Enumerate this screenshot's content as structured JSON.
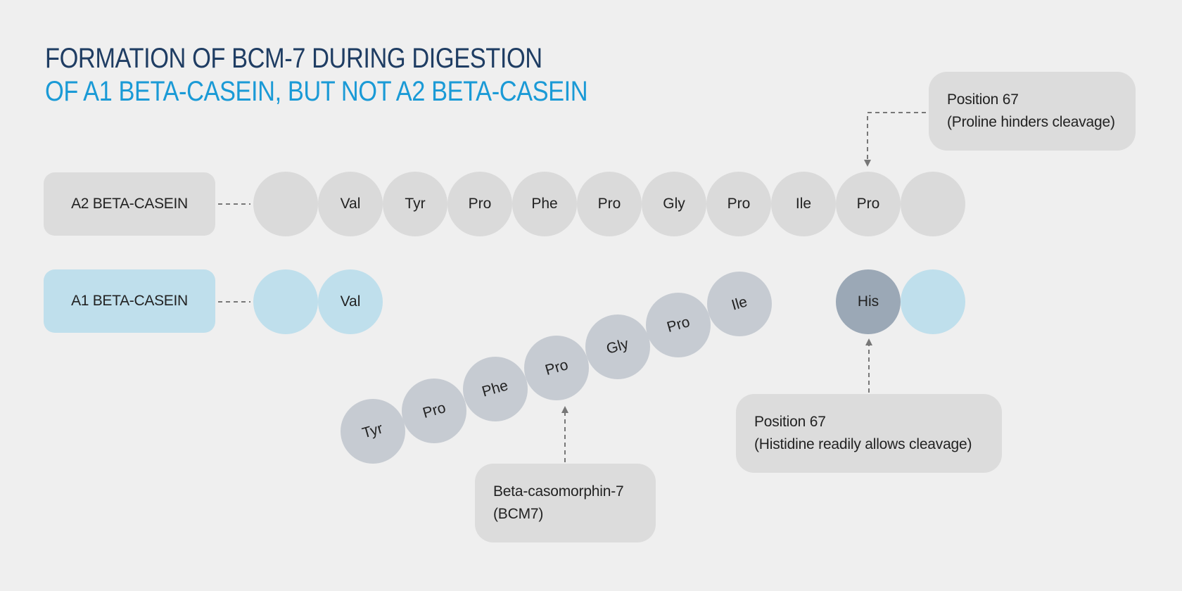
{
  "title": {
    "line1": "FORMATION OF BCM-7 DURING DIGESTION",
    "line2": "OF A1 BETA-CASEIN, BUT NOT A2 BETA-CASEIN"
  },
  "colors": {
    "title_dark": "#1f3d63",
    "title_accent": "#1a9ad6",
    "a2_chain": "#dadada",
    "a1_chain": "#bfdfec",
    "fragment": "#c6cbd2",
    "histidine": "#9ba8b6"
  },
  "a2": {
    "label": "A2 BETA-CASEIN",
    "residues": [
      "",
      "Val",
      "Tyr",
      "Pro",
      "Phe",
      "Pro",
      "Gly",
      "Pro",
      "Ile",
      "Pro",
      ""
    ]
  },
  "a1": {
    "label": "A1 BETA-CASEIN",
    "residues_left": [
      "",
      "Val"
    ],
    "residues_right": [
      "His",
      ""
    ]
  },
  "bcm7_fragment": {
    "residues": [
      "Tyr",
      "Pro",
      "Phe",
      "Pro",
      "Gly",
      "Pro",
      "Ile"
    ]
  },
  "notes": {
    "proline": {
      "line1": "Position 67",
      "line2": "(Proline hinders cleavage)"
    },
    "histidine": {
      "line1": "Position 67",
      "line2": "(Histidine readily allows cleavage)"
    },
    "bcm7": {
      "line1": "Beta-casomorphin-7",
      "line2": "(BCM7)"
    }
  }
}
